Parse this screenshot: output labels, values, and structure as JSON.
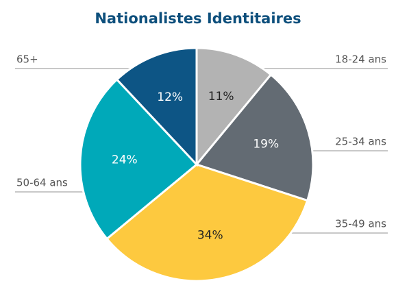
{
  "chart_data": {
    "type": "pie",
    "title": "Nationalistes Identitaires",
    "categories": [
      "18-24 ans",
      "25-34 ans",
      "35-49 ans",
      "50-64 ans",
      "65+"
    ],
    "values": [
      11,
      19,
      34,
      24,
      12
    ],
    "value_labels": [
      "11%",
      "19%",
      "34%",
      "24%",
      "12%"
    ],
    "colors": [
      "#b3b3b3",
      "#636b73",
      "#fdc93f",
      "#00a9b9",
      "#0d5585"
    ]
  }
}
